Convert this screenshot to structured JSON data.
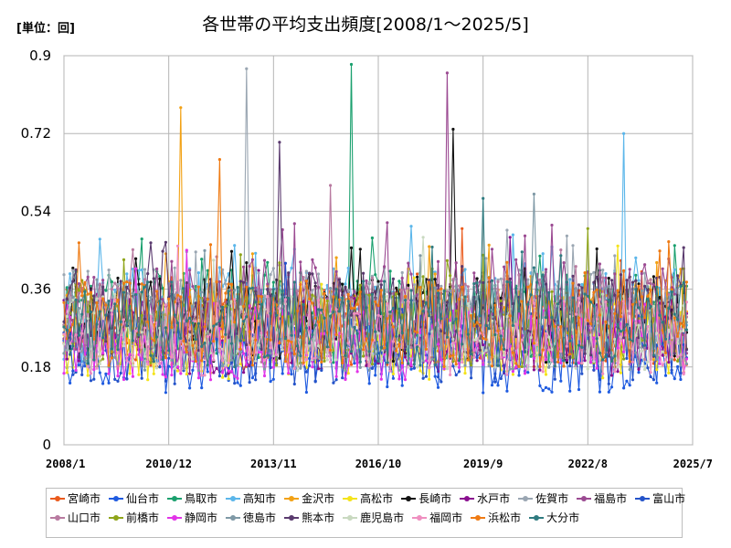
{
  "header": {
    "unit": "[単位：回]",
    "title": "各世帯の平均支出頻度[2008/1～2025/5]"
  },
  "chart_data": {
    "type": "line",
    "x_start": "2008/1",
    "x_end": "2025/7",
    "x_ticks": [
      "2008/1",
      "2010/12",
      "2013/11",
      "2016/10",
      "2019/9",
      "2022/8",
      "2025/7"
    ],
    "y_ticks": [
      "0",
      "0.18",
      "0.36",
      "0.54",
      "0.72",
      "0.9"
    ],
    "ylim": [
      0,
      0.9
    ],
    "grid": true,
    "legend_position": "bottom",
    "series": [
      {
        "name": "宮崎市",
        "color": "#ea5a1c",
        "base": 0.27,
        "amp": 0.09,
        "peak": 0.5
      },
      {
        "name": "仙台市",
        "color": "#1f5be0",
        "base": 0.2,
        "amp": 0.08,
        "peak": 0.4
      },
      {
        "name": "鳥取市",
        "color": "#1aa06e",
        "base": 0.3,
        "amp": 0.11,
        "peak": 0.88
      },
      {
        "name": "高知市",
        "color": "#5bb6ea",
        "base": 0.3,
        "amp": 0.11,
        "peak": 0.72
      },
      {
        "name": "金沢市",
        "color": "#f2a114",
        "base": 0.28,
        "amp": 0.1,
        "peak": 0.78
      },
      {
        "name": "高松市",
        "color": "#f4e31a",
        "base": 0.24,
        "amp": 0.09,
        "peak": 0.46
      },
      {
        "name": "長崎市",
        "color": "#111111",
        "base": 0.29,
        "amp": 0.1,
        "peak": 0.73
      },
      {
        "name": "水戸市",
        "color": "#8a0f8f",
        "base": 0.25,
        "amp": 0.09,
        "peak": 0.48
      },
      {
        "name": "佐賀市",
        "color": "#9aa6b2",
        "base": 0.31,
        "amp": 0.1,
        "peak": 0.87
      },
      {
        "name": "福島市",
        "color": "#9b4a92",
        "base": 0.32,
        "amp": 0.11,
        "peak": 0.86
      },
      {
        "name": "富山市",
        "color": "#2453c9",
        "base": 0.22,
        "amp": 0.08,
        "peak": 0.42
      },
      {
        "name": "山口市",
        "color": "#b87aa0",
        "base": 0.29,
        "amp": 0.1,
        "peak": 0.6
      },
      {
        "name": "前橋市",
        "color": "#8fa51a",
        "base": 0.27,
        "amp": 0.09,
        "peak": 0.5
      },
      {
        "name": "静岡市",
        "color": "#e234e8",
        "base": 0.24,
        "amp": 0.09,
        "peak": 0.45
      },
      {
        "name": "徳島市",
        "color": "#7f99a6",
        "base": 0.27,
        "amp": 0.1,
        "peak": 0.58
      },
      {
        "name": "熊本市",
        "color": "#5a3a6e",
        "base": 0.3,
        "amp": 0.1,
        "peak": 0.7
      },
      {
        "name": "鹿児島市",
        "color": "#c9d9c0",
        "base": 0.26,
        "amp": 0.09,
        "peak": 0.48
      },
      {
        "name": "福岡市",
        "color": "#ef8fc0",
        "base": 0.25,
        "amp": 0.09,
        "peak": 0.46
      },
      {
        "name": "浜松市",
        "color": "#ef7b14",
        "base": 0.28,
        "amp": 0.1,
        "peak": 0.66
      },
      {
        "name": "大分市",
        "color": "#2f7b80",
        "base": 0.28,
        "amp": 0.1,
        "peak": 0.57
      }
    ]
  }
}
